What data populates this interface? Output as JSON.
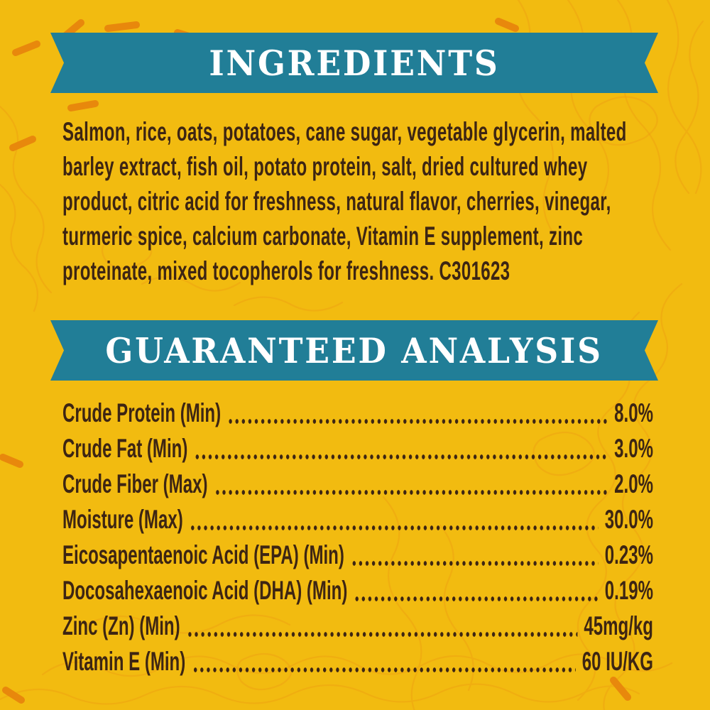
{
  "label": {
    "background_color": "#F2BB10",
    "banner_color": "#217E97",
    "text_color": "#3D2513",
    "banner_text_color": "#FFFFFF",
    "accent_dash_color": "#E8860C"
  },
  "ingredients": {
    "title": "INGREDIENTS",
    "lines": [
      "Salmon, rice, oats, potatoes, cane sugar, vegetable glycerin, malted",
      "barley extract, fish oil, potato protein, salt, dried cultured whey",
      "product, citric acid for freshness, natural flavor, cherries, vinegar,",
      "turmeric spice, calcium carbonate, Vitamin E supplement, zinc",
      "proteinate, mixed tocopherols for freshness. C301623"
    ]
  },
  "guaranteed_analysis": {
    "title": "GUARANTEED ANALYSIS",
    "rows": [
      {
        "label": "Crude Protein (Min)",
        "value": "8.0%"
      },
      {
        "label": "Crude Fat (Min)",
        "value": "3.0%"
      },
      {
        "label": "Crude Fiber (Max)",
        "value": "2.0%"
      },
      {
        "label": "Moisture (Max)",
        "value": "30.0%"
      },
      {
        "label": "Eicosapentaenoic Acid (EPA) (Min)",
        "value": "0.23%"
      },
      {
        "label": "Docosahexaenoic Acid (DHA) (Min)",
        "value": "0.19%"
      },
      {
        "label": "Zinc (Zn) (Min)",
        "value": "45mg/kg"
      },
      {
        "label": "Vitamin E (Min)",
        "value": "60 IU/KG"
      }
    ]
  }
}
